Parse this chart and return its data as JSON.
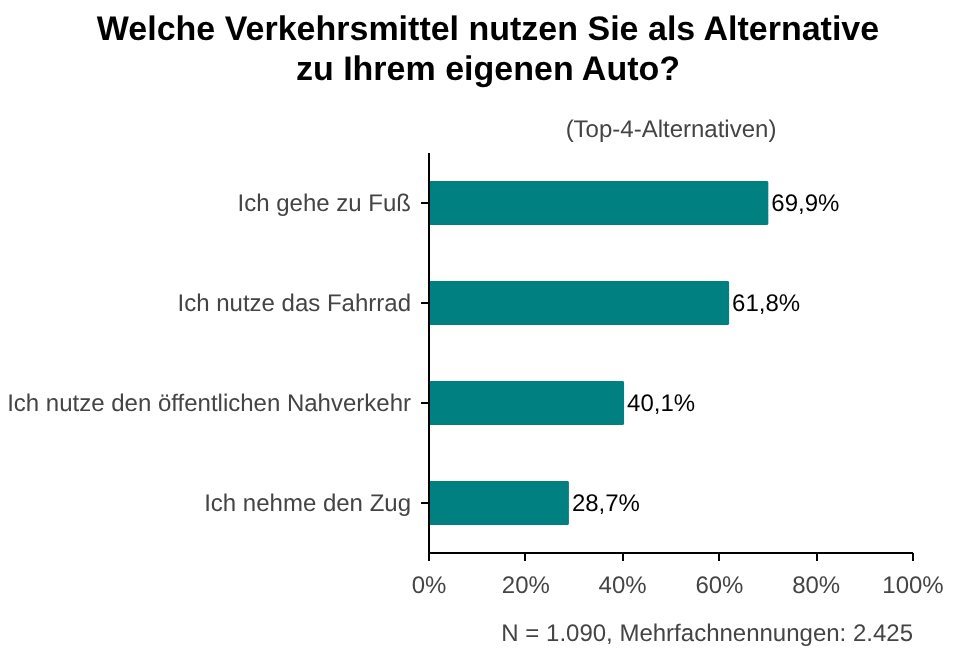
{
  "chart_data": {
    "type": "bar",
    "orientation": "horizontal",
    "title": "Welche Verkehrsmittel nutzen Sie als Alternative zu Ihrem eigenen Auto?",
    "subtitle": "(Top-4-Alternativen)",
    "categories": [
      "Ich gehe zu Fuß",
      "Ich nutze das Fahrrad",
      "Ich nutze den öffentlichen Nahverkehr",
      "Ich nehme den Zug"
    ],
    "values": [
      69.9,
      61.8,
      40.1,
      28.7
    ],
    "value_labels": [
      "69,9%",
      "61,8%",
      "40,1%",
      "28,7%"
    ],
    "color": "#008080",
    "xlim": [
      0,
      100
    ],
    "xticks": [
      {
        "value": 0,
        "label": "0%"
      },
      {
        "value": 20,
        "label": "20%"
      },
      {
        "value": 40,
        "label": "40%"
      },
      {
        "value": 60,
        "label": "60%"
      },
      {
        "value": 80,
        "label": "80%"
      },
      {
        "value": 100,
        "label": "100%"
      }
    ],
    "grid": false,
    "annotations": [
      "N = 1.090, Mehrfachnennungen: 2.425"
    ]
  }
}
